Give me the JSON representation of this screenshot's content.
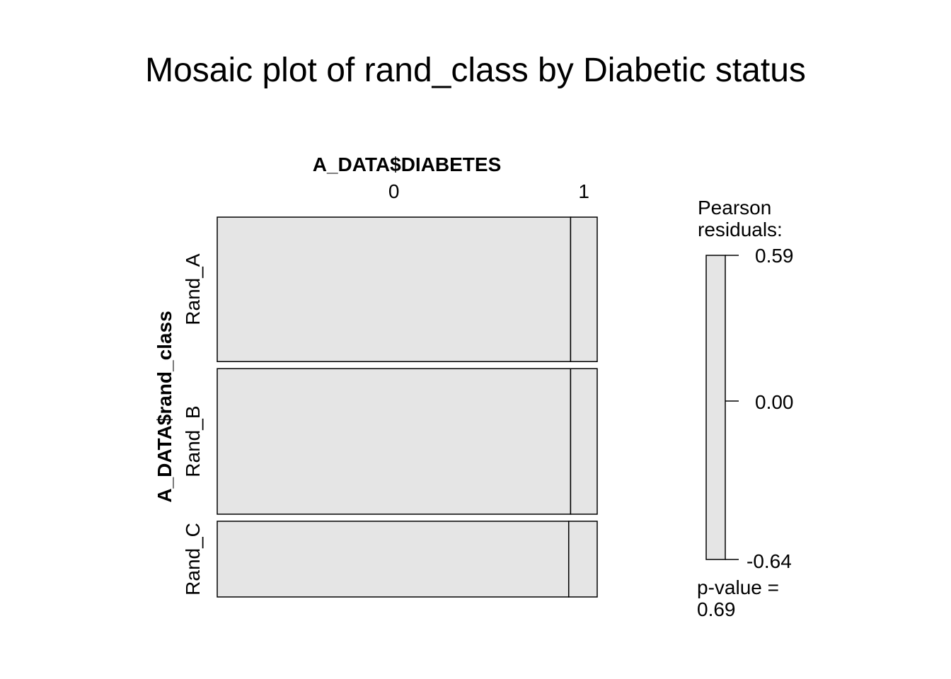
{
  "chart_data": {
    "type": "mosaic",
    "title": "Mosaic plot of rand_class by Diabetic status",
    "xlabel": "A_DATA$DIABETES",
    "ylabel": "A_DATA$rand_class",
    "x_categories": [
      "0",
      "1"
    ],
    "y_categories": [
      "Rand_A",
      "Rand_B",
      "Rand_C"
    ],
    "row_proportions": [
      0.395,
      0.398,
      0.207
    ],
    "cell_proportions_within_row": [
      [
        0.93,
        0.07
      ],
      [
        0.93,
        0.07
      ],
      [
        0.925,
        0.075
      ]
    ],
    "legend": {
      "title_lines": [
        "Pearson",
        "residuals:"
      ],
      "max": "0.59",
      "mid": "0.00",
      "min": "-0.64",
      "max_value": 0.59,
      "mid_value": 0.0,
      "min_value": -0.64,
      "pvalue_lines": [
        "p-value =",
        "0.69"
      ]
    },
    "fill_color": "#e5e5e5",
    "border_color": "#000000"
  }
}
